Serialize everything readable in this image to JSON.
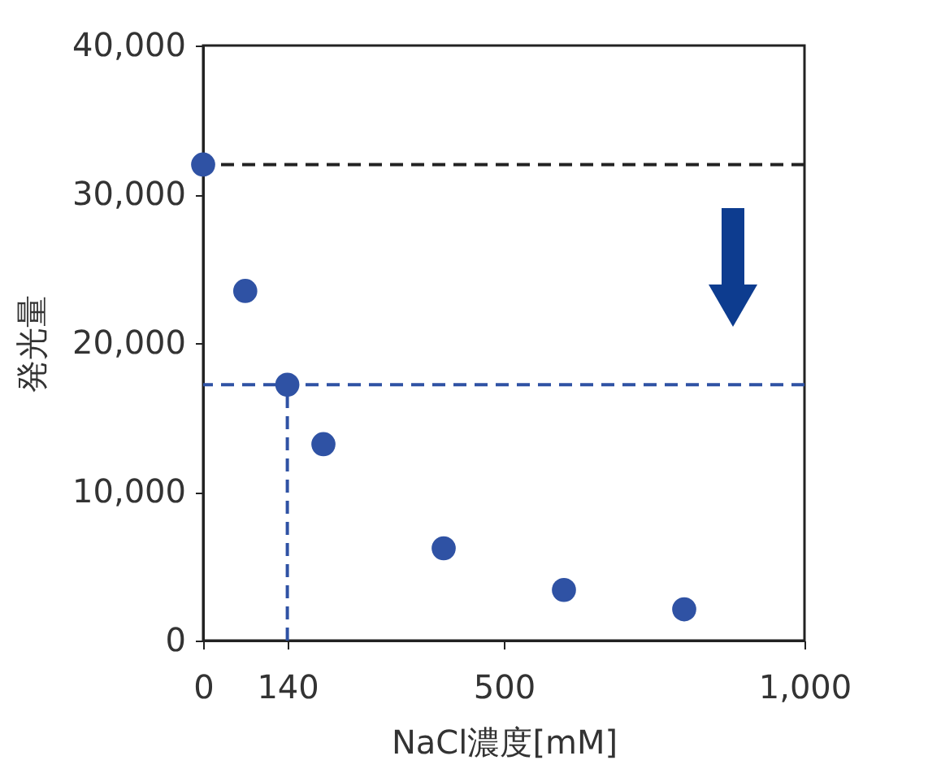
{
  "chart_data": {
    "type": "scatter",
    "xlabel": "NaCl濃度[mM]",
    "ylabel": "発光量",
    "x": [
      0,
      70,
      140,
      200,
      400,
      600,
      800
    ],
    "series": [
      {
        "color": "#2f52a4",
        "values": [
          32000,
          23500,
          17200,
          13200,
          6200,
          3400,
          2100
        ],
        "marker": "circle"
      },
      {
        "type": "line",
        "color": "#2f52a4",
        "x": [
          140,
          140
        ],
        "values": [
          0,
          17200
        ],
        "line_style": "dashed"
      }
    ],
    "xlim": [
      0,
      1000
    ],
    "xticks": [
      0,
      140,
      500,
      {
        "value": 1000,
        "label": "1,000"
      }
    ],
    "ylim": [
      0,
      40000
    ],
    "yticks": [
      0,
      {
        "value": 10000,
        "label": "10,000"
      },
      {
        "value": 20000,
        "label": "20,000"
      },
      {
        "value": 30000,
        "label": "30,000"
      },
      {
        "value": 40000,
        "label": "40,000"
      }
    ],
    "ref_lines": [
      {
        "axis": "y",
        "value": 32000,
        "color": "#222222",
        "line_style": "dashed"
      },
      {
        "axis": "y",
        "value": 17200,
        "color": "#2f52a4",
        "line_style": "dashed"
      }
    ],
    "grid": false
  }
}
